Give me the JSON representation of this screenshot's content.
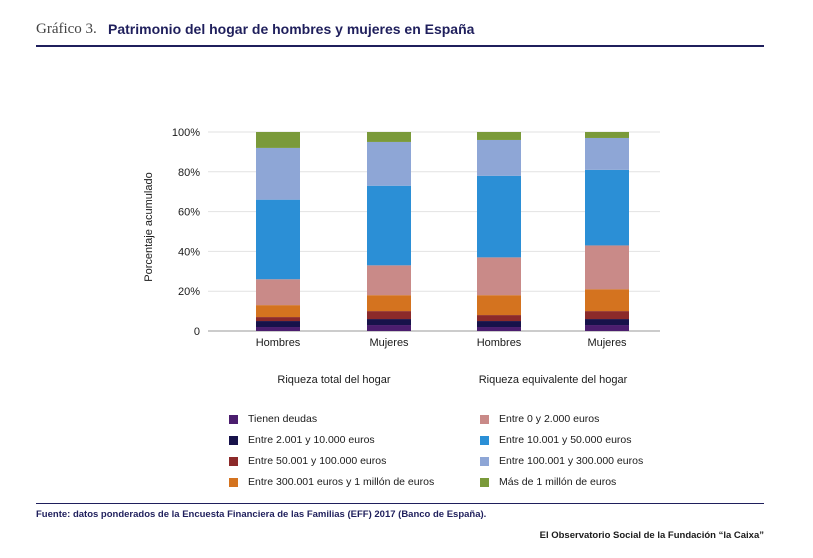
{
  "header": {
    "figure_label": "Gráfico 3.",
    "title": "Patrimonio del hogar de hombres y mujeres en España"
  },
  "chart_data": {
    "type": "bar",
    "stacked": true,
    "ylabel": "Porcentaje acumulado",
    "ylim": [
      0,
      100
    ],
    "yticks": [
      "0",
      "20%",
      "40%",
      "60%",
      "80%",
      "100%"
    ],
    "categories": [
      "Hombres",
      "Mujeres",
      "Hombres",
      "Mujeres"
    ],
    "groups": [
      {
        "label": "Riqueza total del hogar"
      },
      {
        "label": "Riqueza equivalente del hogar"
      }
    ],
    "grid": true,
    "legend_position": "bottom",
    "series": [
      {
        "name": "Tienen deudas",
        "color": "#4b1d6e",
        "values": [
          2,
          3,
          2,
          3
        ]
      },
      {
        "name": "Entre 2.001 y 10.000 euros",
        "color": "#17124a",
        "values": [
          3,
          3,
          3,
          3
        ]
      },
      {
        "name": "Entre 50.001 y 100.000 euros",
        "color": "#8c2a2a",
        "values": [
          2,
          4,
          3,
          4
        ]
      },
      {
        "name": "Entre 300.001 euros y 1 millón de euros",
        "color": "#d4731f",
        "values": [
          6,
          8,
          10,
          11
        ]
      },
      {
        "name": "Entre 0 y 2.000 euros",
        "color": "#c98a88",
        "values": [
          13,
          15,
          19,
          22
        ]
      },
      {
        "name": "Entre 10.001 y 50.000 euros",
        "color": "#2b8fd6",
        "values": [
          40,
          40,
          41,
          38
        ]
      },
      {
        "name": "Entre 100.001 y 300.000 euros",
        "color": "#8ea6d6",
        "values": [
          26,
          22,
          18,
          16
        ]
      },
      {
        "name": "Más de 1 millón de euros",
        "color": "#7a9a3a",
        "values": [
          8,
          5,
          4,
          3
        ]
      }
    ]
  },
  "legend": {
    "items": [
      {
        "label": "Tienen deudas",
        "color": "#4b1d6e"
      },
      {
        "label": "Entre 2.001 y 10.000 euros",
        "color": "#17124a"
      },
      {
        "label": "Entre 50.001 y 100.000 euros",
        "color": "#8c2a2a"
      },
      {
        "label": "Entre 300.001 euros y 1 millón de euros",
        "color": "#d4731f"
      },
      {
        "label": "Entre 0 y 2.000 euros",
        "color": "#c98a88"
      },
      {
        "label": "Entre 10.001 y 50.000 euros",
        "color": "#2b8fd6"
      },
      {
        "label": "Entre 100.001 y 300.000 euros",
        "color": "#8ea6d6"
      },
      {
        "label": "Más de 1 millón de euros",
        "color": "#7a9a3a"
      }
    ]
  },
  "footer": {
    "source": "Fuente: datos ponderados de la Encuesta Financiera de las Familias (EFF) 2017 (Banco de España).",
    "brand": "El Observatorio Social de la Fundación “la Caixa”"
  }
}
